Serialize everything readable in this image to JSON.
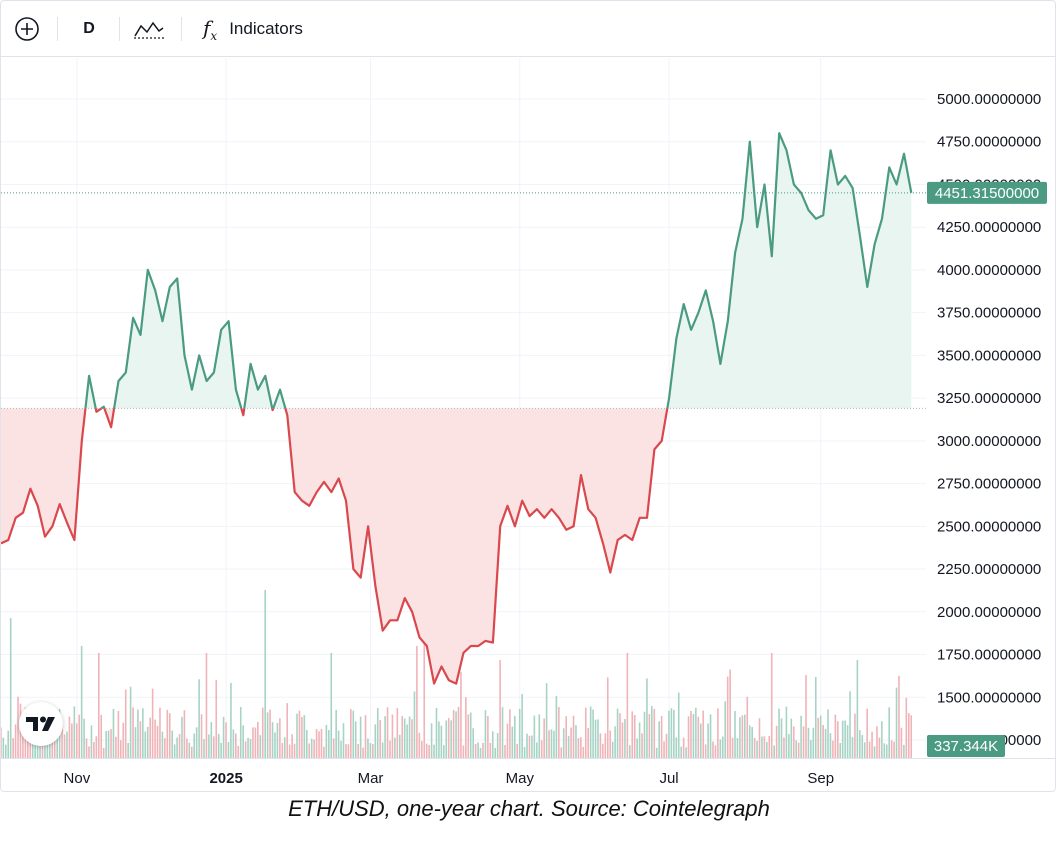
{
  "toolbar": {
    "add_icon": "plus-circle-icon",
    "interval_label": "D",
    "chart_type_icon": "line-chart-icon",
    "indicators_icon": "fx-icon",
    "indicators_label": "Indicators"
  },
  "logo": "tradingview-logo",
  "caption": "ETH/USD, one-year chart. Source: Cointelegraph",
  "colors": {
    "up": "#4a9b82",
    "down": "#d9484d",
    "up_fill": "#e9f5f0",
    "down_fill": "#fbe3e4",
    "vol_up": "#a7d3c5",
    "vol_down": "#f0b3b7",
    "grid": "#f0f3fa",
    "axis_text": "#131722"
  },
  "chart_data": {
    "type": "area",
    "series_name": "ETH/USD",
    "baseline": 3190,
    "last_value_label": "4451.31500000",
    "volume_label": "337.344K",
    "y_ticks": [
      "5000.00000000",
      "4750.00000000",
      "4500.00000000",
      "4250.00000000",
      "4000.00000000",
      "3750.00000000",
      "3500.00000000",
      "3250.00000000",
      "3000.00000000",
      "2750.00000000",
      "2500.00000000",
      "2250.00000000",
      "2000.00000000",
      "1750.00000000",
      "1500.00000000",
      "1250.00000000"
    ],
    "y_tick_values": [
      5000,
      4750,
      4500,
      4250,
      4000,
      3750,
      3500,
      3250,
      3000,
      2750,
      2500,
      2250,
      2000,
      1750,
      1500,
      1250
    ],
    "x_ticks": [
      {
        "label": "Nov",
        "day": 31
      },
      {
        "label": "2025",
        "day": 92
      },
      {
        "label": "Mar",
        "day": 151
      },
      {
        "label": "May",
        "day": 212
      },
      {
        "label": "Jul",
        "day": 273
      },
      {
        "label": "Sep",
        "day": 335
      }
    ],
    "x_bold_tick": "2025",
    "ylim": [
      1250,
      5000
    ],
    "xlim": [
      0,
      378
    ],
    "points": [
      [
        0,
        2400
      ],
      [
        3,
        2420
      ],
      [
        6,
        2550
      ],
      [
        9,
        2580
      ],
      [
        12,
        2720
      ],
      [
        15,
        2620
      ],
      [
        18,
        2440
      ],
      [
        21,
        2500
      ],
      [
        24,
        2630
      ],
      [
        27,
        2520
      ],
      [
        30,
        2420
      ],
      [
        33,
        3000
      ],
      [
        36,
        3380
      ],
      [
        39,
        3170
      ],
      [
        42,
        3200
      ],
      [
        45,
        3080
      ],
      [
        48,
        3350
      ],
      [
        51,
        3400
      ],
      [
        54,
        3720
      ],
      [
        57,
        3620
      ],
      [
        60,
        4000
      ],
      [
        63,
        3880
      ],
      [
        66,
        3700
      ],
      [
        69,
        3900
      ],
      [
        72,
        3950
      ],
      [
        75,
        3500
      ],
      [
        78,
        3300
      ],
      [
        81,
        3500
      ],
      [
        84,
        3350
      ],
      [
        87,
        3400
      ],
      [
        90,
        3650
      ],
      [
        93,
        3700
      ],
      [
        96,
        3300
      ],
      [
        99,
        3150
      ],
      [
        102,
        3450
      ],
      [
        105,
        3300
      ],
      [
        108,
        3380
      ],
      [
        111,
        3180
      ],
      [
        114,
        3300
      ],
      [
        117,
        3150
      ],
      [
        120,
        2700
      ],
      [
        123,
        2650
      ],
      [
        126,
        2620
      ],
      [
        129,
        2700
      ],
      [
        132,
        2760
      ],
      [
        135,
        2700
      ],
      [
        138,
        2780
      ],
      [
        141,
        2650
      ],
      [
        144,
        2250
      ],
      [
        147,
        2200
      ],
      [
        150,
        2500
      ],
      [
        153,
        2150
      ],
      [
        156,
        1890
      ],
      [
        159,
        1950
      ],
      [
        162,
        1950
      ],
      [
        165,
        2080
      ],
      [
        168,
        2000
      ],
      [
        171,
        1850
      ],
      [
        174,
        1800
      ],
      [
        177,
        1580
      ],
      [
        180,
        1680
      ],
      [
        183,
        1600
      ],
      [
        186,
        1580
      ],
      [
        189,
        1760
      ],
      [
        192,
        1800
      ],
      [
        195,
        1800
      ],
      [
        198,
        1830
      ],
      [
        201,
        1820
      ],
      [
        204,
        2500
      ],
      [
        207,
        2620
      ],
      [
        210,
        2500
      ],
      [
        213,
        2650
      ],
      [
        216,
        2560
      ],
      [
        219,
        2600
      ],
      [
        222,
        2550
      ],
      [
        225,
        2600
      ],
      [
        228,
        2550
      ],
      [
        231,
        2480
      ],
      [
        234,
        2500
      ],
      [
        237,
        2800
      ],
      [
        240,
        2600
      ],
      [
        243,
        2550
      ],
      [
        246,
        2400
      ],
      [
        249,
        2230
      ],
      [
        252,
        2420
      ],
      [
        255,
        2450
      ],
      [
        258,
        2420
      ],
      [
        261,
        2550
      ],
      [
        264,
        2550
      ],
      [
        267,
        2950
      ],
      [
        270,
        3000
      ],
      [
        273,
        3250
      ],
      [
        276,
        3600
      ],
      [
        279,
        3800
      ],
      [
        282,
        3650
      ],
      [
        285,
        3750
      ],
      [
        288,
        3880
      ],
      [
        291,
        3700
      ],
      [
        294,
        3450
      ],
      [
        297,
        3700
      ],
      [
        300,
        4100
      ],
      [
        303,
        4300
      ],
      [
        306,
        4750
      ],
      [
        309,
        4250
      ],
      [
        312,
        4500
      ],
      [
        315,
        4080
      ],
      [
        318,
        4800
      ],
      [
        321,
        4700
      ],
      [
        324,
        4500
      ],
      [
        327,
        4450
      ],
      [
        330,
        4350
      ],
      [
        333,
        4300
      ],
      [
        336,
        4320
      ],
      [
        339,
        4700
      ],
      [
        342,
        4500
      ],
      [
        345,
        4550
      ],
      [
        348,
        4480
      ],
      [
        351,
        4200
      ],
      [
        354,
        3900
      ],
      [
        357,
        4150
      ],
      [
        360,
        4300
      ],
      [
        363,
        4600
      ],
      [
        366,
        4500
      ],
      [
        369,
        4680
      ],
      [
        372,
        4451
      ]
    ],
    "volume_max": 2000,
    "volume_spikes": [
      [
        4,
        2.0
      ],
      [
        33,
        1.6
      ],
      [
        40,
        1.5
      ],
      [
        84,
        1.5
      ],
      [
        108,
        2.4
      ],
      [
        135,
        1.5
      ],
      [
        170,
        1.6
      ],
      [
        173,
        1.7
      ],
      [
        204,
        1.4
      ],
      [
        256,
        1.5
      ],
      [
        315,
        1.5
      ],
      [
        350,
        1.4
      ]
    ]
  }
}
